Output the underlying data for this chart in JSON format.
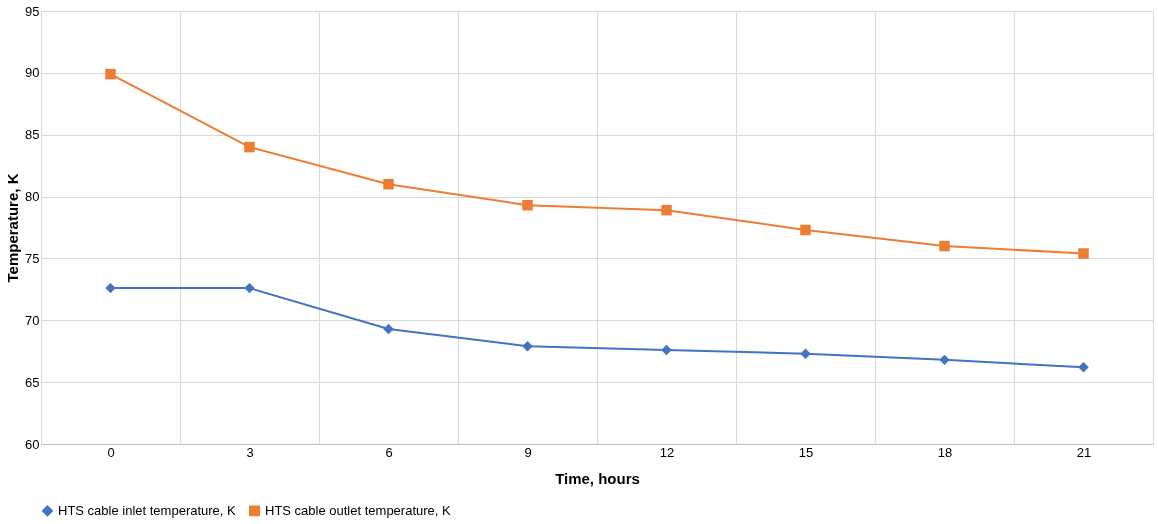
{
  "chart_data": {
    "type": "line",
    "xlabel": "Time, hours",
    "ylabel": "Temperature, K",
    "categories": [
      "0",
      "3",
      "6",
      "9",
      "12",
      "15",
      "18",
      "21"
    ],
    "series": [
      {
        "name": "HTS cable inlet temperature, K",
        "color": "#4472c4",
        "marker": "diamond",
        "values": [
          72.6,
          72.6,
          69.3,
          67.9,
          67.6,
          67.3,
          66.8,
          66.2
        ]
      },
      {
        "name": "HTS cable outlet temperature, K",
        "color": "#ed7d31",
        "marker": "square",
        "values": [
          89.9,
          84.0,
          81.0,
          79.3,
          78.9,
          77.3,
          76.0,
          75.4
        ]
      }
    ],
    "ylim": [
      60,
      95
    ],
    "yticks": [
      60,
      65,
      70,
      75,
      80,
      85,
      90,
      95
    ],
    "grid": true,
    "legend": "bottom"
  }
}
